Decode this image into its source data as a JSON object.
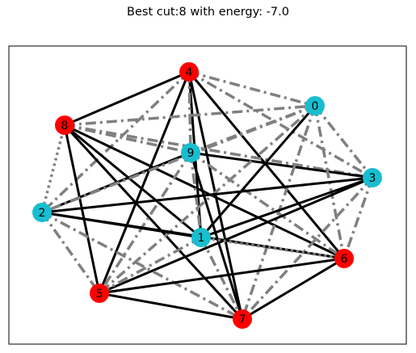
{
  "figure": {
    "title": "Best cut:8 with energy: -7.0"
  },
  "colors": {
    "cut_node": "#ff0000",
    "uncut_node": "#17becf",
    "solid_edge": "#000000",
    "dashed_edge": "#808080",
    "frame": "#000000"
  },
  "nodes": [
    {
      "id": "0",
      "label": "0",
      "group": "uncut"
    },
    {
      "id": "1",
      "label": "1",
      "group": "uncut"
    },
    {
      "id": "2",
      "label": "2",
      "group": "uncut"
    },
    {
      "id": "3",
      "label": "3",
      "group": "uncut"
    },
    {
      "id": "4",
      "label": "4",
      "group": "cut"
    },
    {
      "id": "5",
      "label": "5",
      "group": "cut"
    },
    {
      "id": "6",
      "label": "6",
      "group": "cut"
    },
    {
      "id": "7",
      "label": "7",
      "group": "cut"
    },
    {
      "id": "8",
      "label": "8",
      "group": "cut"
    },
    {
      "id": "9",
      "label": "9",
      "group": "uncut"
    }
  ],
  "edges": [
    {
      "source": "4",
      "target": "8",
      "style": "solid"
    },
    {
      "source": "4",
      "target": "5",
      "style": "solid"
    },
    {
      "source": "4",
      "target": "1",
      "style": "solid"
    },
    {
      "source": "4",
      "target": "6",
      "style": "solid"
    },
    {
      "source": "4",
      "target": "7",
      "style": "solid"
    },
    {
      "source": "4",
      "target": "9",
      "style": "dashdot"
    },
    {
      "source": "4",
      "target": "0",
      "style": "dashdot"
    },
    {
      "source": "4",
      "target": "3",
      "style": "dashdot"
    },
    {
      "source": "4",
      "target": "2",
      "style": "dashdot"
    },
    {
      "source": "8",
      "target": "5",
      "style": "solid"
    },
    {
      "source": "8",
      "target": "7",
      "style": "solid"
    },
    {
      "source": "8",
      "target": "6",
      "style": "solid"
    },
    {
      "source": "8",
      "target": "1",
      "style": "solid"
    },
    {
      "source": "8",
      "target": "9",
      "style": "dashdot"
    },
    {
      "source": "8",
      "target": "0",
      "style": "dashdot"
    },
    {
      "source": "8",
      "target": "3",
      "style": "dashdot"
    },
    {
      "source": "8",
      "target": "2",
      "style": "dotted"
    },
    {
      "source": "9",
      "target": "2",
      "style": "solid"
    },
    {
      "source": "9",
      "target": "3",
      "style": "solid"
    },
    {
      "source": "9",
      "target": "7",
      "style": "solid"
    },
    {
      "source": "9",
      "target": "5",
      "style": "dashdot"
    },
    {
      "source": "9",
      "target": "6",
      "style": "dashdot"
    },
    {
      "source": "9",
      "target": "1",
      "style": "dashdot"
    },
    {
      "source": "0",
      "target": "9",
      "style": "dashdot"
    },
    {
      "source": "0",
      "target": "1",
      "style": "solid"
    },
    {
      "source": "0",
      "target": "2",
      "style": "dashdot"
    },
    {
      "source": "0",
      "target": "5",
      "style": "dashdot"
    },
    {
      "source": "0",
      "target": "6",
      "style": "dashdot"
    },
    {
      "source": "0",
      "target": "7",
      "style": "dashdot"
    },
    {
      "source": "0",
      "target": "3",
      "style": "dashdot"
    },
    {
      "source": "3",
      "target": "2",
      "style": "solid"
    },
    {
      "source": "3",
      "target": "1",
      "style": "solid"
    },
    {
      "source": "3",
      "target": "5",
      "style": "solid"
    },
    {
      "source": "3",
      "target": "6",
      "style": "dashdot"
    },
    {
      "source": "3",
      "target": "7",
      "style": "dashdot"
    },
    {
      "source": "2",
      "target": "1",
      "style": "solid"
    },
    {
      "source": "2",
      "target": "6",
      "style": "solid"
    },
    {
      "source": "2",
      "target": "5",
      "style": "dashdot"
    },
    {
      "source": "2",
      "target": "7",
      "style": "dashdot"
    },
    {
      "source": "1",
      "target": "5",
      "style": "dashdot"
    },
    {
      "source": "1",
      "target": "7",
      "style": "dashdot"
    },
    {
      "source": "1",
      "target": "6",
      "style": "dotted"
    },
    {
      "source": "5",
      "target": "6",
      "style": "solid"
    },
    {
      "source": "5",
      "target": "7",
      "style": "solid"
    },
    {
      "source": "7",
      "target": "6",
      "style": "solid"
    }
  ]
}
